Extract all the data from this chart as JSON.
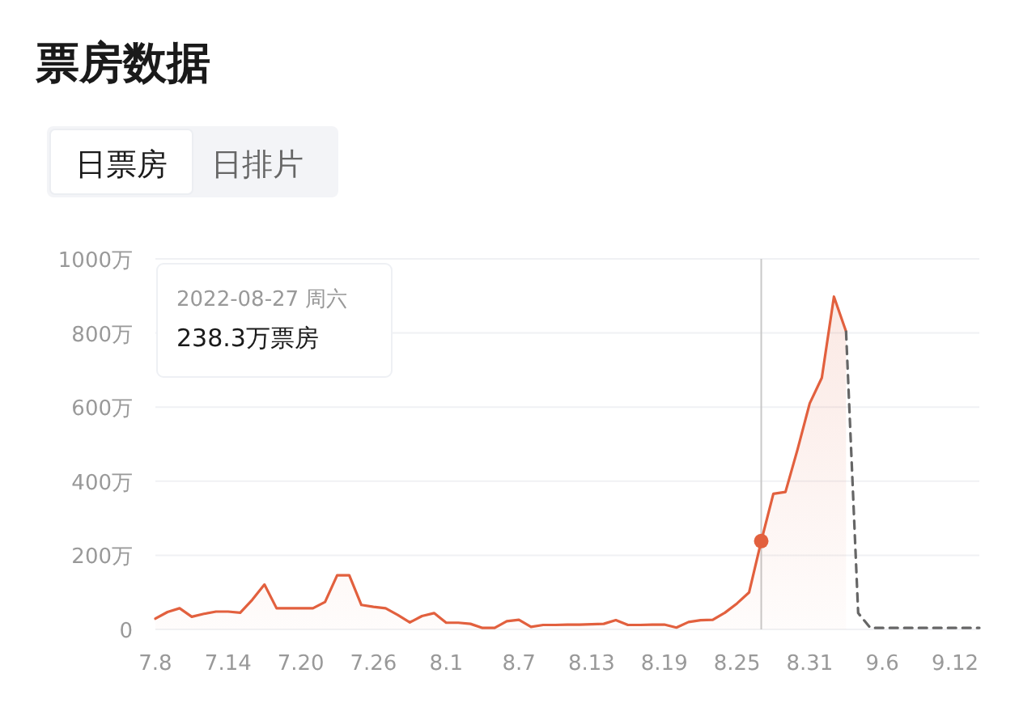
{
  "chart_data": {
    "type": "area",
    "title": "票房数据",
    "annotations": [
      "日票房",
      "日排片",
      "2022-08-27 周六",
      "238.3万票房"
    ],
    "x": [
      "2022-07-08",
      "2022-07-09",
      "2022-07-10",
      "2022-07-11",
      "2022-07-12",
      "2022-07-13",
      "2022-07-14",
      "2022-07-15",
      "2022-07-16",
      "2022-07-17",
      "2022-07-18",
      "2022-07-19",
      "2022-07-20",
      "2022-07-21",
      "2022-07-22",
      "2022-07-23",
      "2022-07-24",
      "2022-07-25",
      "2022-07-26",
      "2022-07-27",
      "2022-07-28",
      "2022-07-29",
      "2022-07-30",
      "2022-07-31",
      "2022-08-01",
      "2022-08-02",
      "2022-08-03",
      "2022-08-04",
      "2022-08-05",
      "2022-08-06",
      "2022-08-07",
      "2022-08-08",
      "2022-08-09",
      "2022-08-10",
      "2022-08-11",
      "2022-08-12",
      "2022-08-13",
      "2022-08-14",
      "2022-08-15",
      "2022-08-16",
      "2022-08-17",
      "2022-08-18",
      "2022-08-19",
      "2022-08-20",
      "2022-08-21",
      "2022-08-22",
      "2022-08-23",
      "2022-08-24",
      "2022-08-25",
      "2022-08-26",
      "2022-08-27",
      "2022-08-28",
      "2022-08-29",
      "2022-08-30",
      "2022-08-31",
      "2022-09-01",
      "2022-09-02",
      "2022-09-03"
    ],
    "series": [
      {
        "color": "#e2603e",
        "marker": "none",
        "line_style": "solid",
        "values": [
          29,
          47,
          57,
          34,
          42,
          48,
          48,
          45,
          80,
          121,
          57,
          57,
          57,
          57,
          74,
          146,
          146,
          66,
          61,
          57,
          39,
          19,
          36,
          44,
          18,
          18,
          15,
          4,
          4,
          22,
          26,
          7,
          12,
          12,
          13,
          13,
          14,
          15,
          25,
          12,
          12,
          13,
          13,
          5,
          20,
          25,
          26,
          45,
          70,
          100,
          238.3,
          366,
          371,
          486,
          610,
          679,
          898,
          804
        ]
      },
      {
        "type": "line",
        "color": "#666666",
        "marker": "none",
        "line_style": "dashed",
        "x": [
          "2022-09-03",
          "2022-09-04",
          "2022-09-05",
          "2022-09-06",
          "2022-09-07",
          "2022-09-08",
          "2022-09-09",
          "2022-09-10",
          "2022-09-11",
          "2022-09-12",
          "2022-09-13",
          "2022-09-14"
        ],
        "values": [
          804,
          44,
          4,
          4,
          4,
          4,
          4,
          4,
          4,
          4,
          4,
          4
        ]
      },
      {
        "type": "scatter",
        "color": "#e2603e",
        "marker": "circle",
        "x": [
          "2022-08-27"
        ],
        "values": [
          238.3
        ]
      }
    ],
    "xlim": [
      "2022-07-08",
      "2022-09-14"
    ],
    "xticks": [
      {
        "value": "2022-07-08",
        "label": "7.8"
      },
      {
        "value": "2022-07-14",
        "label": "7.14"
      },
      {
        "value": "2022-07-20",
        "label": "7.20"
      },
      {
        "value": "2022-07-26",
        "label": "7.26"
      },
      {
        "value": "2022-08-01",
        "label": "8.1"
      },
      {
        "value": "2022-08-07",
        "label": "8.7"
      },
      {
        "value": "2022-08-13",
        "label": "8.13"
      },
      {
        "value": "2022-08-19",
        "label": "8.19"
      },
      {
        "value": "2022-08-25",
        "label": "8.25"
      },
      {
        "value": "2022-08-31",
        "label": "8.31"
      },
      {
        "value": "2022-09-06",
        "label": "9.6"
      },
      {
        "value": "2022-09-12",
        "label": "9.12"
      }
    ],
    "ylim": [
      0,
      1000
    ],
    "yticks": [
      0,
      {
        "value": 200,
        "label": "200万"
      },
      {
        "value": 400,
        "label": "400万"
      },
      {
        "value": 600,
        "label": "600万"
      },
      {
        "value": 800,
        "label": "800万"
      },
      {
        "value": 1000,
        "label": "1000万"
      }
    ],
    "grid": "y",
    "ref_lines": [
      {
        "axis": "x",
        "value": "2022-08-27",
        "color": "#c8c8c8"
      }
    ]
  }
}
